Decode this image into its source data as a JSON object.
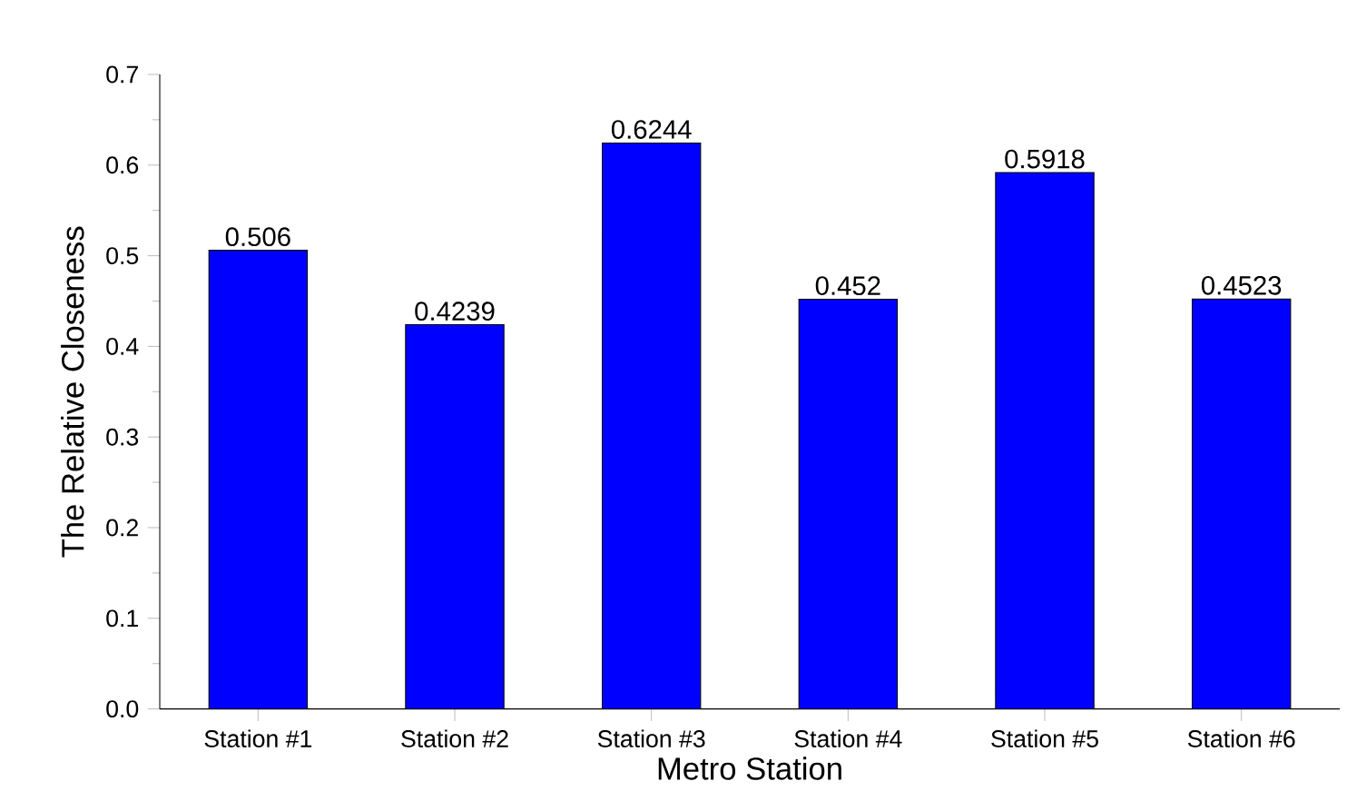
{
  "chart_data": {
    "type": "bar",
    "xlabel": "Metro Station",
    "ylabel": "The Relative Closeness",
    "categories": [
      "Station #1",
      "Station #2",
      "Station #3",
      "Station #4",
      "Station #5",
      "Station #6"
    ],
    "values": [
      0.506,
      0.4239,
      0.6244,
      0.452,
      0.5918,
      0.4523
    ],
    "color": "#0000ff",
    "ylim": [
      0,
      0.7
    ],
    "yticks": [
      {
        "value": 0,
        "label": "0.0"
      },
      0.1,
      0.2,
      0.3,
      0.4,
      0.5,
      0.6,
      0.7
    ],
    "data_labels": true,
    "grid": false
  }
}
